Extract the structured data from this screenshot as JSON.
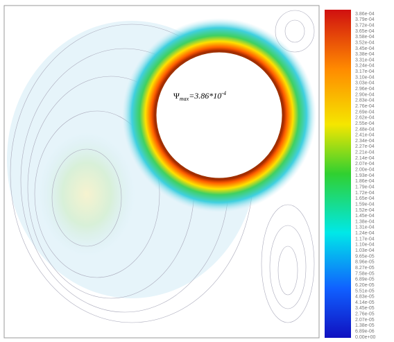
{
  "chart_data": {
    "type": "contour",
    "annotation": {
      "symbol": "Ψ",
      "subscript": "max",
      "text": "=3.86*10",
      "superscript": "-4"
    },
    "colorbar": {
      "labels": [
        "3.86e-04",
        "3.79e-04",
        "3.72e-04",
        "3.65e-04",
        "3.58e-04",
        "3.52e-04",
        "3.45e-04",
        "3.38e-04",
        "3.31e-04",
        "3.24e-04",
        "3.17e-04",
        "3.10e-04",
        "3.03e-04",
        "2.96e-04",
        "2.90e-04",
        "2.83e-04",
        "2.76e-04",
        "2.69e-04",
        "2.62e-04",
        "2.55e-04",
        "2.48e-04",
        "2.41e-04",
        "2.34e-04",
        "2.27e-04",
        "2.21e-04",
        "2.14e-04",
        "2.07e-04",
        "2.00e-04",
        "1.93e-04",
        "1.86e-04",
        "1.79e-04",
        "1.72e-04",
        "1.65e-04",
        "1.59e-04",
        "1.52e-04",
        "1.45e-04",
        "1.38e-04",
        "1.31e-04",
        "1.24e-04",
        "1.17e-04",
        "1.10e-04",
        "1.03e-04",
        "9.65e-05",
        "8.96e-05",
        "8.27e-05",
        "7.58e-05",
        "6.89e-05",
        "6.20e-05",
        "5.51e-05",
        "4.83e-05",
        "4.14e-05",
        "3.45e-05",
        "2.76e-05",
        "2.07e-05",
        "1.38e-05",
        "6.89e-06",
        "0.00e+00"
      ]
    }
  }
}
